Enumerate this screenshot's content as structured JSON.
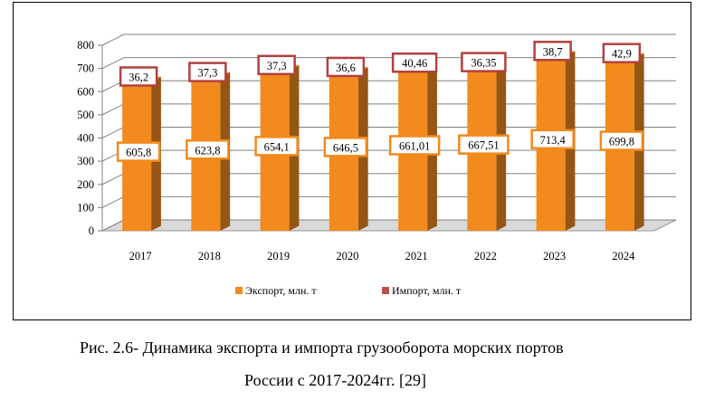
{
  "chart_data": {
    "type": "bar",
    "stacked": true,
    "three_d": true,
    "categories": [
      "2017",
      "2018",
      "2019",
      "2020",
      "2021",
      "2022",
      "2023",
      "2024"
    ],
    "series": [
      {
        "name": "Экспорт, млн. т",
        "values": [
          605.8,
          623.8,
          654.1,
          646.5,
          661.01,
          667.51,
          713.4,
          699.8
        ],
        "labels": [
          "605,8",
          "623,8",
          "654,1",
          "646,5",
          "661,01",
          "667,51",
          "713,4",
          "699,8"
        ],
        "color": "#f28a1e"
      },
      {
        "name": "Импорт, млн. т",
        "values": [
          36.2,
          37.3,
          37.3,
          36.6,
          40.46,
          36.35,
          38.7,
          42.9
        ],
        "labels": [
          "36,2",
          "37,3",
          "37,3",
          "36,6",
          "40,46",
          "36,35",
          "38,7",
          "42,9"
        ],
        "color": "#c0504d"
      }
    ],
    "ylim": [
      0,
      800
    ],
    "yticks": [
      "0",
      "100",
      "200",
      "300",
      "400",
      "500",
      "600",
      "700",
      "800"
    ],
    "grid": true,
    "legend_position": "bottom"
  },
  "caption": {
    "line1": "Рис. 2.6- Динамика экспорта и импорта грузооборота морских портов",
    "line2": "России с 2017-2024гг. [29]"
  }
}
